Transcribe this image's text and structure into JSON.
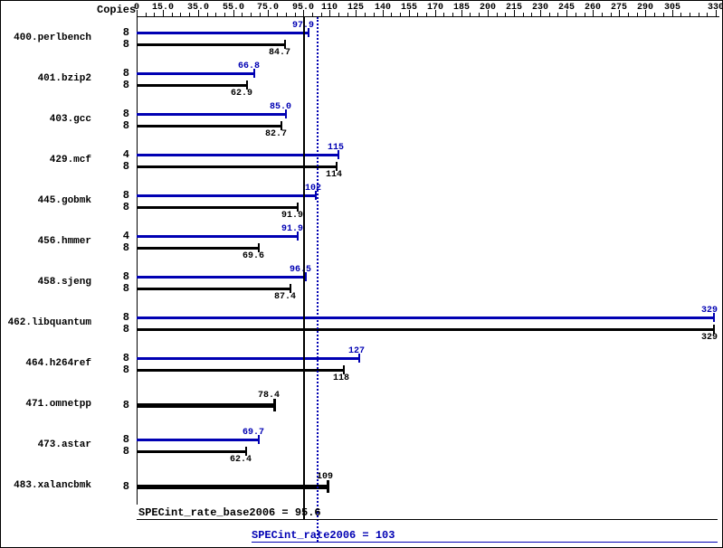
{
  "header": {
    "copies_label": "Copies"
  },
  "axis": {
    "min": 0,
    "max": 330,
    "minor_tick_step": 5,
    "ticks": [
      {
        "label": "0",
        "value": 0
      },
      {
        "label": "15.0",
        "value": 15
      },
      {
        "label": "35.0",
        "value": 35
      },
      {
        "label": "55.0",
        "value": 55
      },
      {
        "label": "75.0",
        "value": 75
      },
      {
        "label": "95.0",
        "value": 95
      },
      {
        "label": "110",
        "value": 110
      },
      {
        "label": "125",
        "value": 125
      },
      {
        "label": "140",
        "value": 140
      },
      {
        "label": "155",
        "value": 155
      },
      {
        "label": "170",
        "value": 170
      },
      {
        "label": "185",
        "value": 185
      },
      {
        "label": "200",
        "value": 200
      },
      {
        "label": "215",
        "value": 215
      },
      {
        "label": "230",
        "value": 230
      },
      {
        "label": "245",
        "value": 245
      },
      {
        "label": "260",
        "value": 260
      },
      {
        "label": "275",
        "value": 275
      },
      {
        "label": "290",
        "value": 290
      },
      {
        "label": "305",
        "value": 305
      },
      {
        "label": "330",
        "value": 330
      }
    ]
  },
  "colors": {
    "peak": "#0000b3",
    "base": "#000000"
  },
  "chart_data": {
    "type": "bar",
    "orientation": "horizontal",
    "title": "",
    "xlim": [
      0,
      330
    ],
    "legend": "blue bars = peak (SPECint_rate2006), black bars = base (SPECint_rate_base2006), bold single bars = base only",
    "benchmarks": [
      {
        "name": "400.perlbench",
        "peak": {
          "copies": "8",
          "value": 97.9,
          "label": "97.9"
        },
        "base": {
          "copies": "8",
          "value": 84.7,
          "label": "84.7"
        }
      },
      {
        "name": "401.bzip2",
        "peak": {
          "copies": "8",
          "value": 66.8,
          "label": "66.8"
        },
        "base": {
          "copies": "8",
          "value": 62.9,
          "label": "62.9"
        }
      },
      {
        "name": "403.gcc",
        "peak": {
          "copies": "8",
          "value": 85.0,
          "label": "85.0"
        },
        "base": {
          "copies": "8",
          "value": 82.7,
          "label": "82.7"
        }
      },
      {
        "name": "429.mcf",
        "peak": {
          "copies": "4",
          "value": 115,
          "label": "115"
        },
        "base": {
          "copies": "8",
          "value": 114,
          "label": "114"
        }
      },
      {
        "name": "445.gobmk",
        "peak": {
          "copies": "8",
          "value": 102,
          "label": "102"
        },
        "base": {
          "copies": "8",
          "value": 91.9,
          "label": "91.9"
        }
      },
      {
        "name": "456.hmmer",
        "peak": {
          "copies": "4",
          "value": 91.9,
          "label": "91.9"
        },
        "base": {
          "copies": "8",
          "value": 69.6,
          "label": "69.6"
        }
      },
      {
        "name": "458.sjeng",
        "peak": {
          "copies": "8",
          "value": 96.5,
          "label": "96.5"
        },
        "base": {
          "copies": "8",
          "value": 87.4,
          "label": "87.4"
        }
      },
      {
        "name": "462.libquantum",
        "peak": {
          "copies": "8",
          "value": 329,
          "label": "329"
        },
        "base": {
          "copies": "8",
          "value": 329,
          "label": "329"
        }
      },
      {
        "name": "464.h264ref",
        "peak": {
          "copies": "8",
          "value": 127,
          "label": "127"
        },
        "base": {
          "copies": "8",
          "value": 118,
          "label": "118"
        }
      },
      {
        "name": "471.omnetpp",
        "single": {
          "copies": "8",
          "value": 78.4,
          "label": "78.4"
        }
      },
      {
        "name": "473.astar",
        "peak": {
          "copies": "8",
          "value": 69.7,
          "label": "69.7"
        },
        "base": {
          "copies": "8",
          "value": 62.4,
          "label": "62.4"
        }
      },
      {
        "name": "483.xalancbmk",
        "single": {
          "copies": "8",
          "value": 109,
          "label": "109"
        }
      }
    ],
    "reference_lines": [
      {
        "name": "base",
        "label": "SPECint_rate_base2006 = 95.6",
        "value": 95.6,
        "style": "solid",
        "color": "#000000"
      },
      {
        "name": "peak",
        "label": "SPECint_rate2006 = 103",
        "value": 103,
        "style": "dotted",
        "color": "#0000b3"
      }
    ]
  }
}
